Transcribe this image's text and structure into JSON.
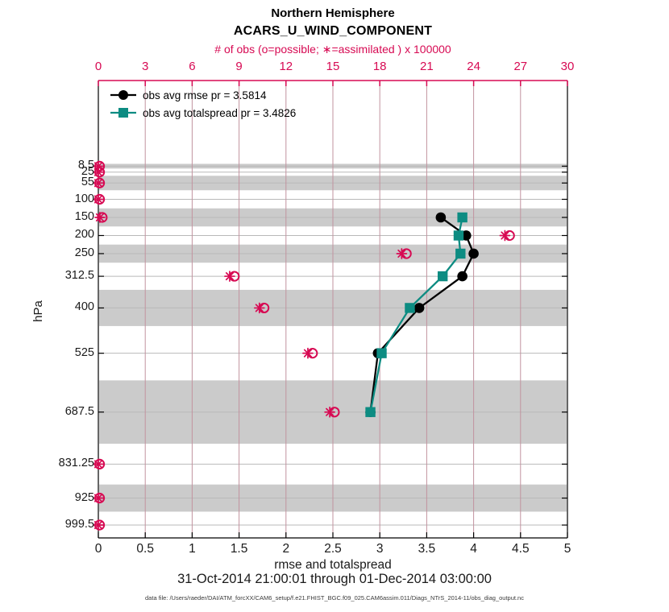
{
  "header": {
    "title": "Northern Hemisphere",
    "subtitle": "ACARS_U_WIND_COMPONENT"
  },
  "footer": {
    "date_range": "31-Oct-2014 21:00:01 through 01-Dec-2014 03:00:00",
    "data_file": "data file: /Users/raeder/DAI/ATM_forcXX/CAM6_setup/f.e21.FHIST_BGC.f09_025.CAM6assim.011/Diags_NTrS_2014-11/obs_diag_output.nc"
  },
  "colors": {
    "obs_pink": "#D70A53",
    "spread_teal": "#0D8C82",
    "rmse_black": "#000000",
    "band_gray": "#cbcbcb",
    "level_gridline": "#b9b9b9",
    "vertical_gridline": "#c2939f"
  },
  "chart_data": {
    "type": "line",
    "orientation": "vertical-pressure-profile",
    "title": "Northern Hemisphere",
    "subtitle": "ACARS_U_WIND_COMPONENT",
    "x_top": {
      "label": "# of obs (o=possible; ∗=assimilated ) x 100000",
      "min": 0,
      "max": 30,
      "ticks": [
        0,
        3,
        6,
        9,
        12,
        15,
        18,
        21,
        24,
        27,
        30
      ],
      "color": "#D70A53"
    },
    "x_bottom": {
      "label": "rmse and totalspread",
      "min": 0,
      "max": 5,
      "ticks": [
        0,
        0.5,
        1,
        1.5,
        2,
        2.5,
        3,
        3.5,
        4,
        4.5,
        5
      ]
    },
    "y_axis": {
      "label": "hPa",
      "tick_levels": [
        8.5,
        25,
        55,
        100,
        150,
        200,
        250,
        312.5,
        400,
        525,
        687.5,
        831.25,
        925,
        999.5
      ],
      "range_top": -228,
      "range_bottom": 1035,
      "direction": "pressure-increasing-downward"
    },
    "shaded_layers_hpa": [
      [
        2,
        15
      ],
      [
        35,
        75
      ],
      [
        125,
        175
      ],
      [
        225,
        275
      ],
      [
        350,
        450
      ],
      [
        600,
        775
      ],
      [
        887.5,
        962.5
      ]
    ],
    "series": [
      {
        "name": "obs avg rmse pr = 3.5814",
        "marker": "circle",
        "color": "#000000",
        "levels_hpa": [
          150,
          200,
          250,
          312.5,
          400,
          525,
          687.5
        ],
        "values": [
          3.65,
          3.92,
          4.0,
          3.88,
          3.42,
          2.98,
          2.9
        ]
      },
      {
        "name": "obs avg totalspread pr = 3.4826",
        "marker": "square",
        "color": "#0D8C82",
        "levels_hpa": [
          150,
          200,
          250,
          312.5,
          400,
          525,
          687.5
        ],
        "values": [
          3.88,
          3.84,
          3.86,
          3.67,
          3.32,
          3.02,
          2.9
        ]
      }
    ],
    "obs_counts_x100000": {
      "levels_hpa": [
        8.5,
        25,
        55,
        100,
        150,
        200,
        250,
        312.5,
        400,
        525,
        687.5,
        831.25,
        925,
        999.5
      ],
      "possible": [
        0.08,
        0.08,
        0.08,
        0.08,
        0.25,
        26.3,
        19.7,
        8.7,
        10.6,
        13.7,
        15.1,
        0.08,
        0.08,
        0.08
      ],
      "assimilated": [
        0,
        0,
        0,
        0,
        0.1,
        26.0,
        19.4,
        8.4,
        10.3,
        13.4,
        14.8,
        0,
        0,
        0
      ]
    },
    "legend_position": "top-left-inside",
    "grid": true
  }
}
